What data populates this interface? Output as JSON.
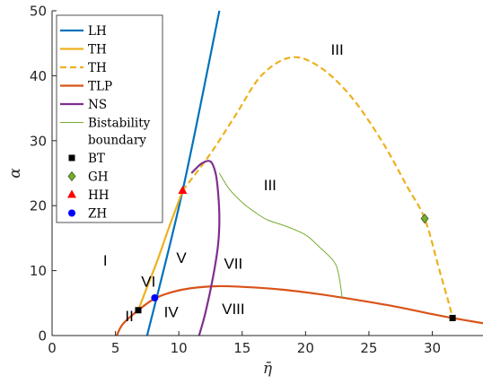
{
  "chart_data": {
    "type": "line",
    "title": "",
    "xlabel": "η̄",
    "ylabel": "α",
    "xlim": [
      0,
      34
    ],
    "ylim": [
      0,
      50
    ],
    "xticks": [
      0,
      5,
      10,
      15,
      20,
      25,
      30
    ],
    "yticks": [
      0,
      10,
      20,
      30,
      40,
      50
    ],
    "grid": false,
    "legend_position": "top-left",
    "series": [
      {
        "name": "LH",
        "style": "solid",
        "color": "#0072BD",
        "points": [
          [
            7.5,
            0
          ],
          [
            10.3,
            22.3
          ],
          [
            13.2,
            50
          ]
        ]
      },
      {
        "name": "TH",
        "style": "solid",
        "color": "#EDB120",
        "points": [
          [
            6.8,
            3.9
          ],
          [
            7.6,
            8
          ],
          [
            8.3,
            11.5
          ],
          [
            9.2,
            16.5
          ],
          [
            10.3,
            22.3
          ]
        ]
      },
      {
        "name": "TH",
        "style": "dashed",
        "color": "#EDB120",
        "points": [
          [
            10.3,
            22.3
          ],
          [
            12.5,
            28
          ],
          [
            14.5,
            34
          ],
          [
            16.5,
            40
          ],
          [
            18.8,
            42.8
          ],
          [
            21,
            41.5
          ],
          [
            23.5,
            37
          ],
          [
            26,
            30
          ],
          [
            28,
            23
          ],
          [
            29.4,
            18
          ],
          [
            30.5,
            10.5
          ],
          [
            31.3,
            5
          ],
          [
            31.6,
            2.7
          ]
        ]
      },
      {
        "name": "TLP",
        "style": "solid",
        "color": "#D95319",
        "points": [
          [
            5.1,
            0
          ],
          [
            5.6,
            1.8
          ],
          [
            6.8,
            3.9
          ],
          [
            8.1,
            5.7
          ],
          [
            9.5,
            6.7
          ],
          [
            11,
            7.3
          ],
          [
            13,
            7.6
          ],
          [
            15,
            7.5
          ],
          [
            18,
            7.1
          ],
          [
            21,
            6.4
          ],
          [
            24,
            5.5
          ],
          [
            27,
            4.5
          ],
          [
            30,
            3.3
          ],
          [
            31.6,
            2.7
          ],
          [
            34,
            1.9
          ]
        ]
      },
      {
        "name": "NS",
        "style": "solid",
        "color": "#7E2F8E",
        "points": [
          [
            11.6,
            0
          ],
          [
            12.1,
            3.5
          ],
          [
            12.7,
            9
          ],
          [
            13.1,
            14
          ],
          [
            13.2,
            18
          ],
          [
            13.1,
            22
          ],
          [
            12.9,
            25
          ],
          [
            12.5,
            26.8
          ],
          [
            11.8,
            26.5
          ],
          [
            11.0,
            25
          ]
        ]
      },
      {
        "name": "Bistability boundary",
        "style": "solid",
        "color": "#77AC30",
        "points": [
          [
            13.2,
            25
          ],
          [
            14,
            22.5
          ],
          [
            15,
            20.5
          ],
          [
            16,
            19
          ],
          [
            17,
            17.8
          ],
          [
            18.5,
            16.8
          ],
          [
            20,
            15.5
          ],
          [
            21,
            13.8
          ],
          [
            22.2,
            11.5
          ],
          [
            22.6,
            9.5
          ],
          [
            22.9,
            5.7
          ]
        ]
      }
    ],
    "markers": [
      {
        "name": "BT",
        "shape": "square",
        "color": "#000000",
        "points": [
          [
            6.8,
            3.9
          ],
          [
            31.6,
            2.7
          ]
        ]
      },
      {
        "name": "GH",
        "shape": "diamond",
        "color": "#77AC30",
        "points": [
          [
            29.4,
            18
          ]
        ]
      },
      {
        "name": "HH",
        "shape": "triangle",
        "color": "#FF0000",
        "points": [
          [
            10.3,
            22.3
          ]
        ]
      },
      {
        "name": "ZH",
        "shape": "circle",
        "color": "#0000FF",
        "points": [
          [
            8.1,
            5.8
          ]
        ]
      }
    ],
    "region_labels": [
      {
        "text": "I",
        "x": 4.2,
        "y": 10.8
      },
      {
        "text": "II",
        "x": 6.1,
        "y": 2.2
      },
      {
        "text": "III",
        "x": 22.5,
        "y": 43.2
      },
      {
        "text": "III",
        "x": 17.2,
        "y": 22.4
      },
      {
        "text": "IV",
        "x": 9.4,
        "y": 2.8
      },
      {
        "text": "V",
        "x": 10.2,
        "y": 11.2
      },
      {
        "text": "VI",
        "x": 7.6,
        "y": 7.5
      },
      {
        "text": "VII",
        "x": 14.3,
        "y": 10.3
      },
      {
        "text": "VIII",
        "x": 14.3,
        "y": 3.3
      }
    ],
    "legend_entries": [
      {
        "label": "LH",
        "kind": "line",
        "color": "#0072BD",
        "dash": false
      },
      {
        "label": "TH",
        "kind": "line",
        "color": "#EDB120",
        "dash": false
      },
      {
        "label": "TH",
        "kind": "line",
        "color": "#EDB120",
        "dash": true
      },
      {
        "label": "TLP",
        "kind": "line",
        "color": "#D95319",
        "dash": false
      },
      {
        "label": "NS",
        "kind": "line",
        "color": "#7E2F8E",
        "dash": false
      },
      {
        "label": "Bistability",
        "label2": "boundary",
        "kind": "thin",
        "color": "#77AC30",
        "dash": false
      },
      {
        "label": "BT",
        "kind": "square",
        "color": "#000000"
      },
      {
        "label": "GH",
        "kind": "diamond",
        "color": "#77AC30"
      },
      {
        "label": "HH",
        "kind": "triangle",
        "color": "#FF0000"
      },
      {
        "label": "ZH",
        "kind": "circle",
        "color": "#0000FF"
      }
    ]
  }
}
